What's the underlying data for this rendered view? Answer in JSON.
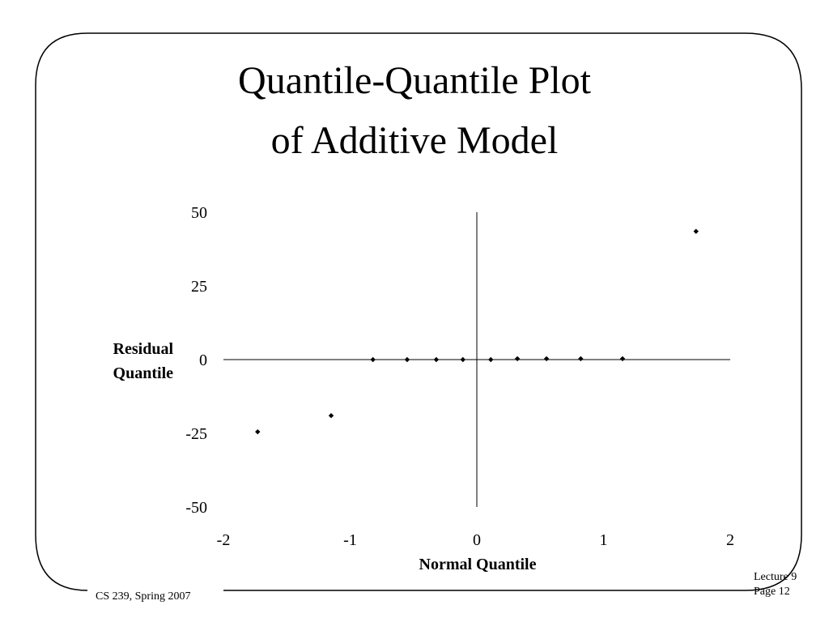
{
  "slide": {
    "title_line1": "Quantile-Quantile Plot",
    "title_line2": "of Additive Model",
    "footer_left": "CS 239, Spring 2007",
    "footer_right_line1": "Lecture 9",
    "footer_right_line2": "Page 12"
  },
  "chart_data": {
    "type": "scatter",
    "title": "",
    "xlabel": "Normal Quantile",
    "ylabel_line1": "Residual",
    "ylabel_line2": "Quantile",
    "xlim": [
      -2,
      2
    ],
    "ylim": [
      -50,
      50
    ],
    "x_ticks": [
      "-2",
      "-1",
      "0",
      "1",
      "2"
    ],
    "y_ticks": [
      "50",
      "25",
      "0",
      "-25",
      "-50"
    ],
    "x_tick_values": [
      -2,
      -1,
      0,
      1,
      2
    ],
    "y_tick_values": [
      50,
      25,
      0,
      -25,
      -50
    ],
    "series": [
      {
        "points": [
          {
            "x": -1.73,
            "y": -24.5
          },
          {
            "x": -1.15,
            "y": -19
          },
          {
            "x": -0.82,
            "y": 0
          },
          {
            "x": -0.55,
            "y": 0
          },
          {
            "x": -0.32,
            "y": 0
          },
          {
            "x": -0.11,
            "y": 0
          },
          {
            "x": 0.11,
            "y": 0
          },
          {
            "x": 0.32,
            "y": 0.3
          },
          {
            "x": 0.55,
            "y": 0.3
          },
          {
            "x": 0.82,
            "y": 0.3
          },
          {
            "x": 1.15,
            "y": 0.3
          },
          {
            "x": 1.73,
            "y": 43.5
          }
        ]
      }
    ],
    "grid": false,
    "legend": "none"
  }
}
